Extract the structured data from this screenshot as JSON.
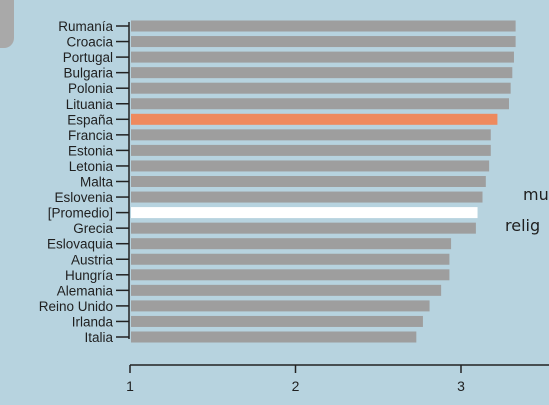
{
  "colors": {
    "background": "#b7d3df",
    "bar_default": "#9e9e9e",
    "bar_highlight": "#ee8a5e",
    "bar_average": "#ffffff",
    "axis": "#222222",
    "text": "#1f1f1f"
  },
  "overlay": {
    "line1": "mu",
    "line2": "relig"
  },
  "chart_data": {
    "type": "bar",
    "orientation": "horizontal",
    "title": "",
    "xlabel": "",
    "ylabel": "",
    "xlim": [
      1,
      3.5
    ],
    "xticks": [
      1,
      2,
      3
    ],
    "grid": false,
    "categories": [
      "Rumanía",
      "Croacia",
      "Portugal",
      "Bulgaria",
      "Polonia",
      "Lituania",
      "España",
      "Francia",
      "Estonia",
      "Letonia",
      "Malta",
      "Eslovenia",
      "[Promedio]",
      "Grecia",
      "Eslovaquia",
      "Austria",
      "Hungría",
      "Alemania",
      "Reino Unido",
      "Irlanda",
      "Italia"
    ],
    "values": [
      3.33,
      3.33,
      3.32,
      3.31,
      3.3,
      3.29,
      3.22,
      3.18,
      3.18,
      3.17,
      3.15,
      3.13,
      3.1,
      3.09,
      2.94,
      2.93,
      2.93,
      2.88,
      2.81,
      2.77,
      2.73
    ],
    "highlight": {
      "España": "highlight",
      "[Promedio]": "average"
    }
  }
}
